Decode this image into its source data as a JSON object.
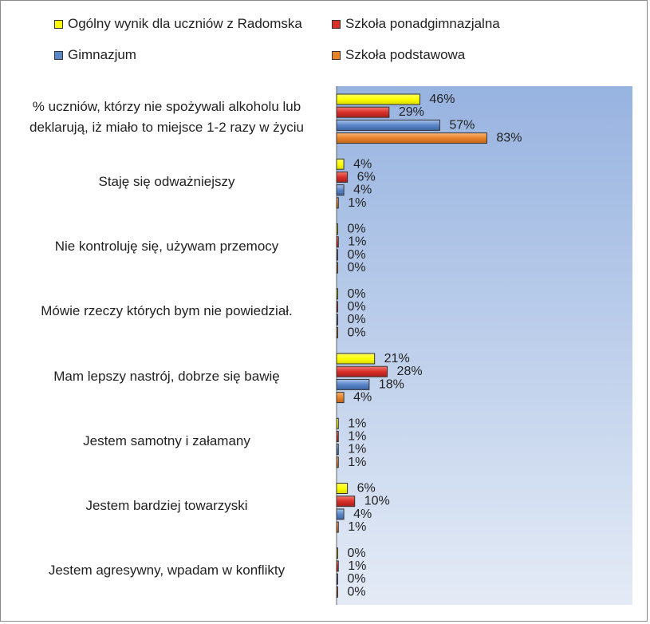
{
  "chart_data": {
    "type": "bar",
    "orientation": "horizontal",
    "categories": [
      "% uczniów, którzy nie spożywali alkoholu lub deklarują, iż miało to miejsce 1-2 razy w życiu",
      "Staję się odważniejszy",
      "Nie kontroluję się, używam przemocy",
      "Mówie rzeczy których bym nie powiedział.",
      "Mam lepszy nastrój, dobrze się bawię",
      "Jestem samotny i załamany",
      "Jestem bardziej towarzyski",
      "Jestem agresywny, wpadam w konflikty"
    ],
    "series": [
      {
        "name": "Ogólny wynik dla uczniów z Radomska",
        "color": "#ffff00",
        "values": [
          46,
          4,
          0,
          0,
          21,
          1,
          6,
          0
        ],
        "labels": [
          "46%",
          "4%",
          "0%",
          "0%",
          "21%",
          "1%",
          "6%",
          "0%"
        ]
      },
      {
        "name": "Szkoła ponadgimnazjalna",
        "color": "#d9302a",
        "values": [
          29,
          6,
          1,
          0,
          28,
          1,
          10,
          1
        ],
        "labels": [
          "29%",
          "6%",
          "1%",
          "0%",
          "28%",
          "1%",
          "10%",
          "1%"
        ]
      },
      {
        "name": "Gimnazjum",
        "color": "#5b86c8",
        "values": [
          57,
          4,
          0,
          0,
          18,
          1,
          4,
          0
        ],
        "labels": [
          "57%",
          "4%",
          "0%",
          "0%",
          "18%",
          "1%",
          "4%",
          "0%"
        ]
      },
      {
        "name": "Szkoła podstawowa",
        "color": "#e8832a",
        "values": [
          83,
          1,
          0,
          0,
          4,
          1,
          1,
          0
        ],
        "labels": [
          "83%",
          "1%",
          "0%",
          "0%",
          "4%",
          "1%",
          "1%",
          "0%"
        ]
      }
    ],
    "xlim": [
      0,
      100
    ],
    "legend_position": "top",
    "plot_background": "gradient-blue"
  }
}
